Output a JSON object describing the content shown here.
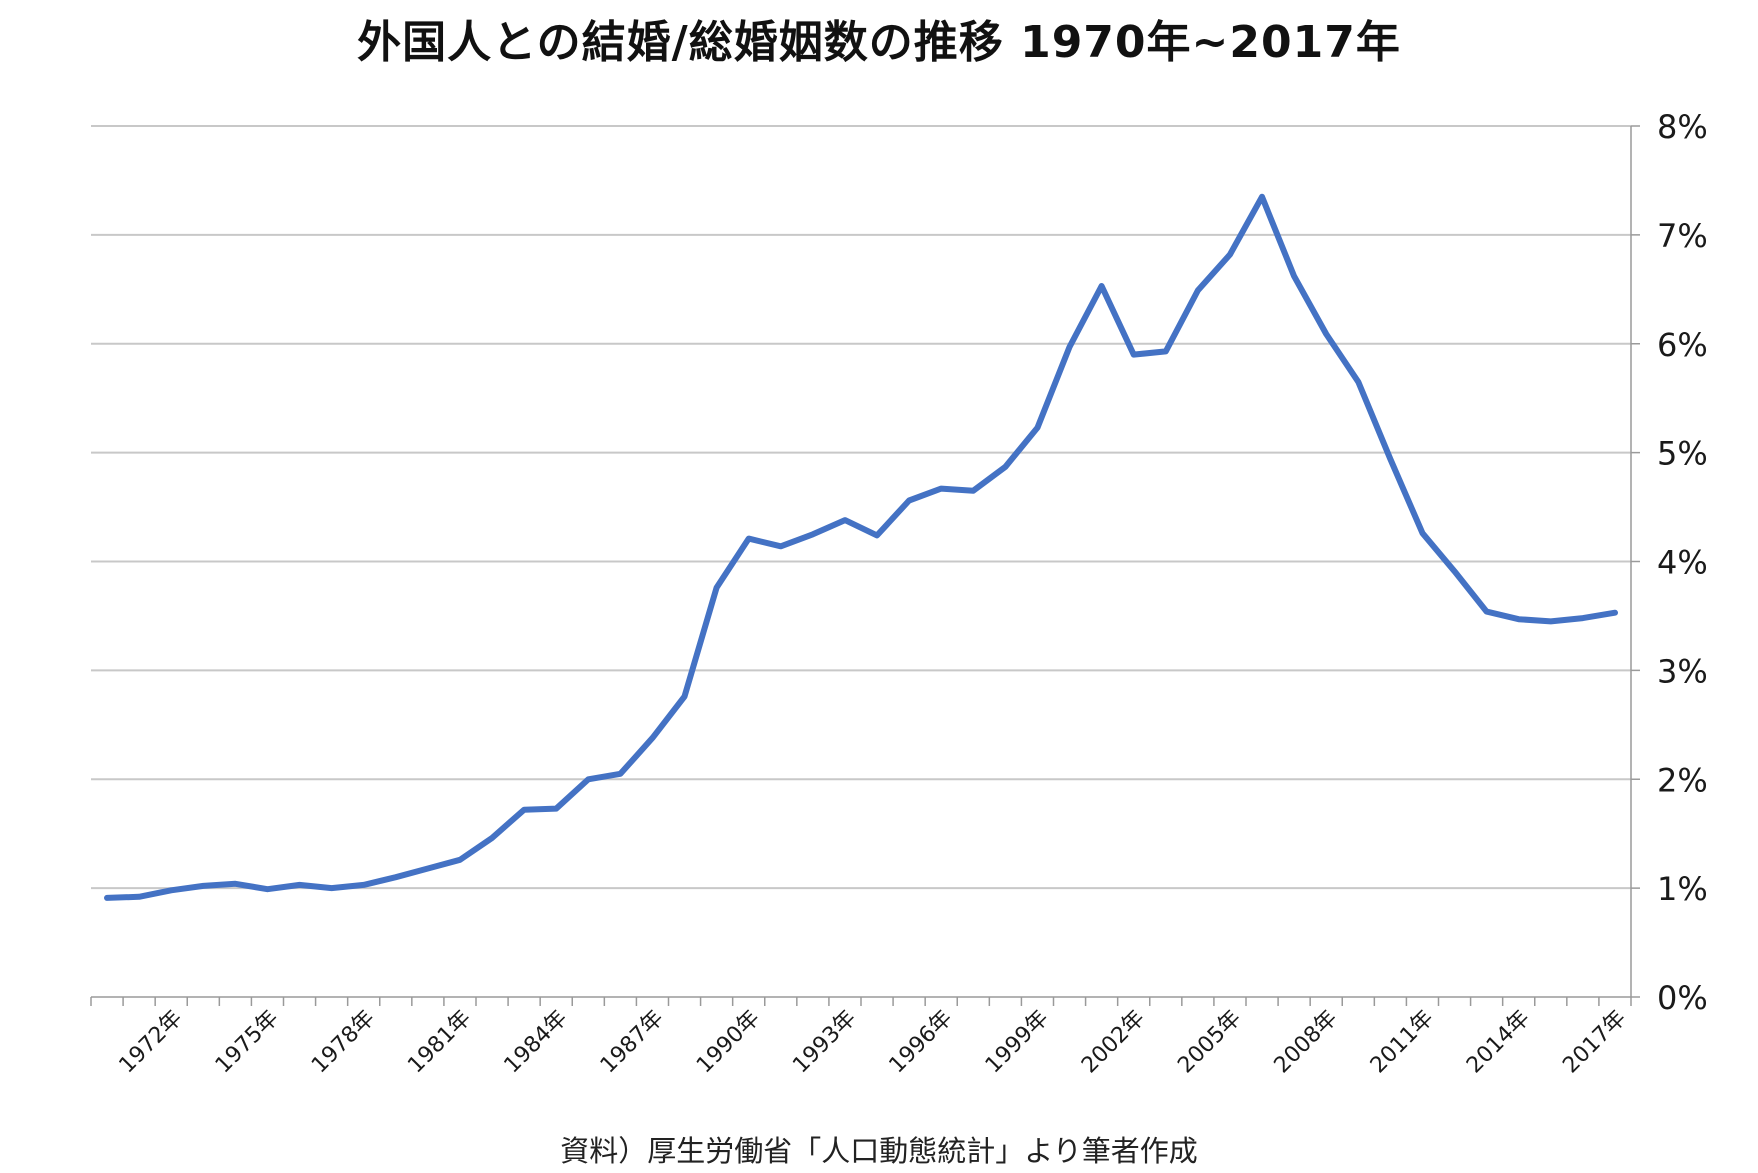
{
  "chart_data": {
    "type": "line",
    "title": "外国人との結婚/総婚姻数の推移 1970年~2017年",
    "source_note": "資料）厚生労働省「人口動態統計」より筆者作成",
    "x": [
      1970,
      1971,
      1972,
      1973,
      1974,
      1975,
      1976,
      1977,
      1978,
      1979,
      1980,
      1981,
      1982,
      1983,
      1984,
      1985,
      1986,
      1987,
      1988,
      1989,
      1990,
      1991,
      1992,
      1993,
      1994,
      1995,
      1996,
      1997,
      1998,
      1999,
      2000,
      2001,
      2002,
      2003,
      2004,
      2005,
      2006,
      2007,
      2008,
      2009,
      2010,
      2011,
      2012,
      2013,
      2014,
      2015,
      2016,
      2017
    ],
    "x_tick_years": [
      1972,
      1975,
      1978,
      1981,
      1984,
      1987,
      1990,
      1993,
      1996,
      1999,
      2002,
      2005,
      2008,
      2011,
      2014,
      2017
    ],
    "x_tick_suffix": "年",
    "series": [
      {
        "name": "",
        "color": "#4472c4",
        "values": [
          0.91,
          0.92,
          0.98,
          1.02,
          1.04,
          0.99,
          1.03,
          1.0,
          1.03,
          1.1,
          1.18,
          1.26,
          1.46,
          1.72,
          1.73,
          2.0,
          2.05,
          2.38,
          2.76,
          3.76,
          4.21,
          4.14,
          4.25,
          4.38,
          4.24,
          4.56,
          4.67,
          4.65,
          4.87,
          5.23,
          5.97,
          6.53,
          5.9,
          5.93,
          6.49,
          6.82,
          7.35,
          6.62,
          6.09,
          5.65,
          4.94,
          4.26,
          3.91,
          3.54,
          3.47,
          3.45,
          3.48,
          3.53
        ]
      }
    ],
    "y_ticks": [
      "0%",
      "1%",
      "2%",
      "3%",
      "4%",
      "5%",
      "6%",
      "7%",
      "8%"
    ],
    "ylim": [
      0,
      8
    ],
    "y_axis_side": "right",
    "grid": true,
    "legend": "none"
  }
}
